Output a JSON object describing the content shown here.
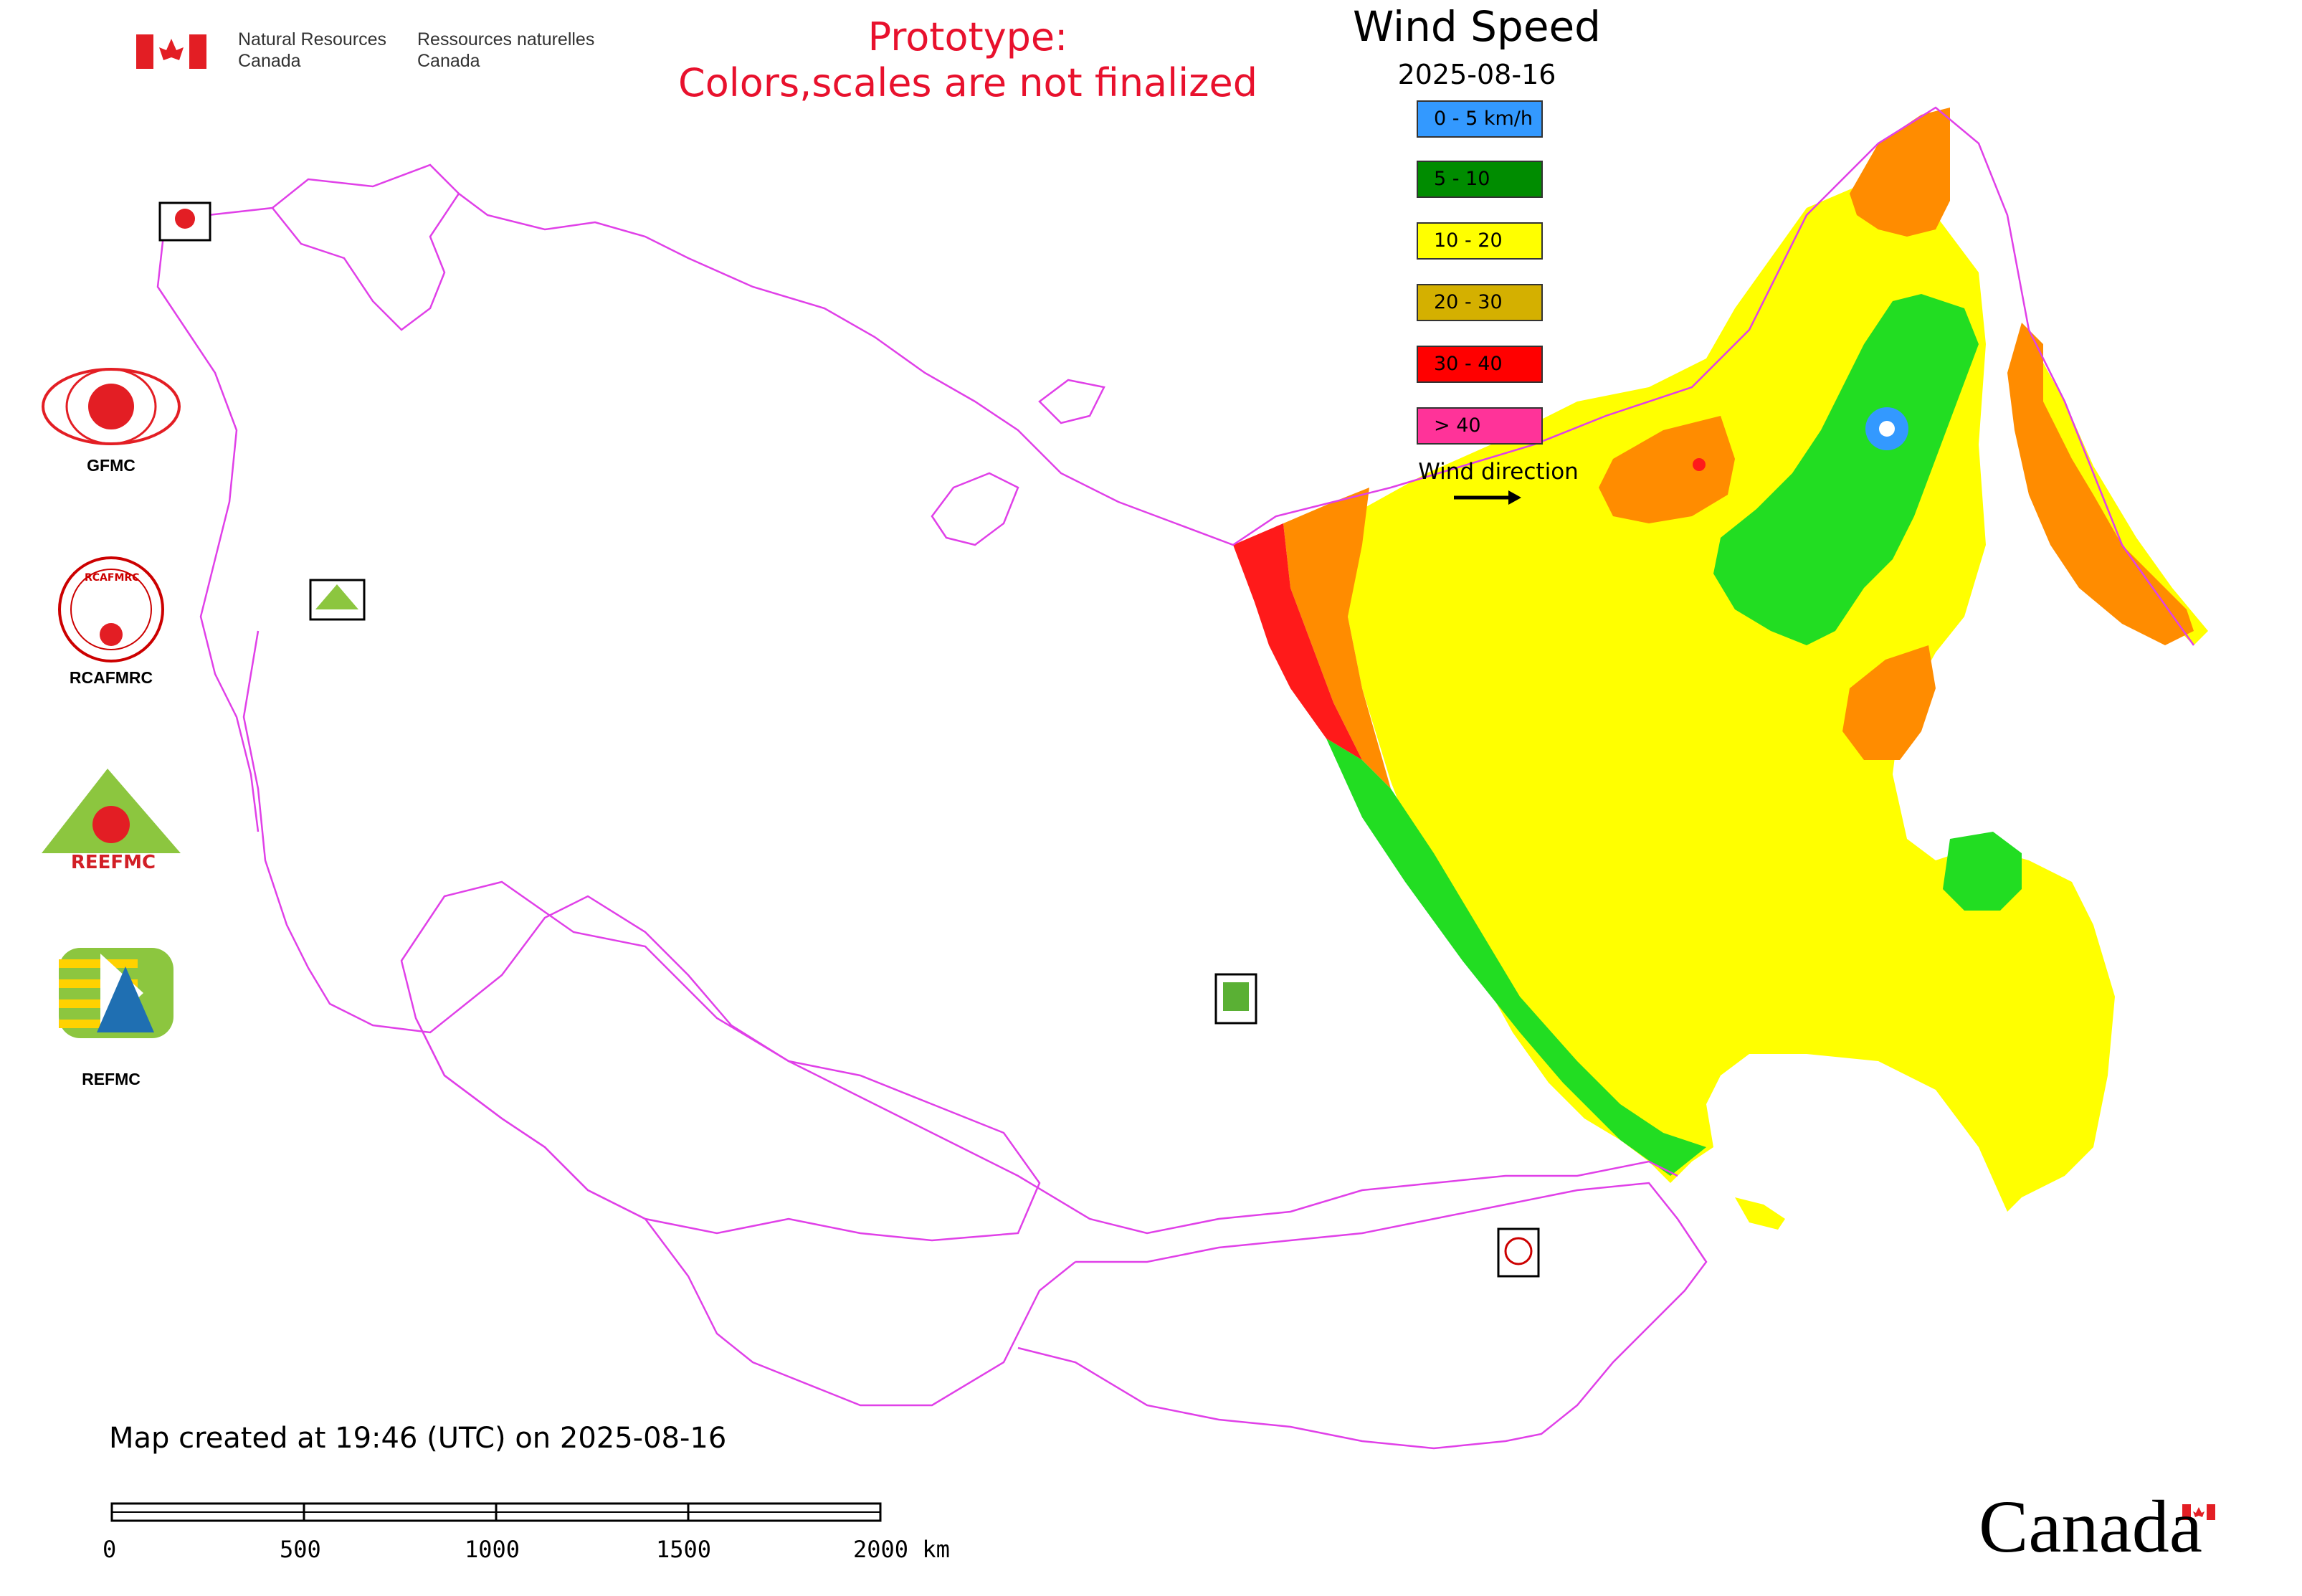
{
  "header": {
    "nrcan_en_line1": "Natural Resources",
    "nrcan_en_line2": "Canada",
    "nrcan_fr_line1": "Ressources naturelles",
    "nrcan_fr_line2": "Canada",
    "prototype_line1": "Prototype:",
    "prototype_line2": "Colors,scales are not finalized"
  },
  "map": {
    "title": "Wind Speed",
    "date": "2025-08-16",
    "created": "Map created at 19:46 (UTC) on 2025-08-16",
    "colors": {
      "boundary": "#e040e8",
      "calm": "#3399ff",
      "low": "#22dd22",
      "medium": "#ffff00",
      "high": "#ff8c00",
      "very_high": "#ff1a1a",
      "extreme": "#ff3399"
    }
  },
  "legend": {
    "items": [
      {
        "label": "0 - 5 km/h",
        "color": "#3399ff"
      },
      {
        "label": "5 - 10",
        "color": "#008c00"
      },
      {
        "label": "10 - 20",
        "color": "#ffff00"
      },
      {
        "label": "20 - 30",
        "color": "#d4b000"
      },
      {
        "label": "30 - 40",
        "color": "#ff0000"
      },
      {
        "label": "> 40",
        "color": "#ff3399"
      }
    ],
    "wind_direction_label": "Wind direction"
  },
  "organizations": {
    "gfmc": "GFMC",
    "rcafmrc": "RCAFMRC",
    "reefmc": "REEFMC",
    "refmc": "REFMC",
    "reefmc_logo_text": "REEFMC",
    "rcafmrc_logo_text": "RCAFMRC"
  },
  "scale_bar": {
    "labels": [
      "0",
      "500",
      "1000",
      "1500",
      "2000 km"
    ]
  },
  "footer": {
    "wordmark": "Canada"
  }
}
